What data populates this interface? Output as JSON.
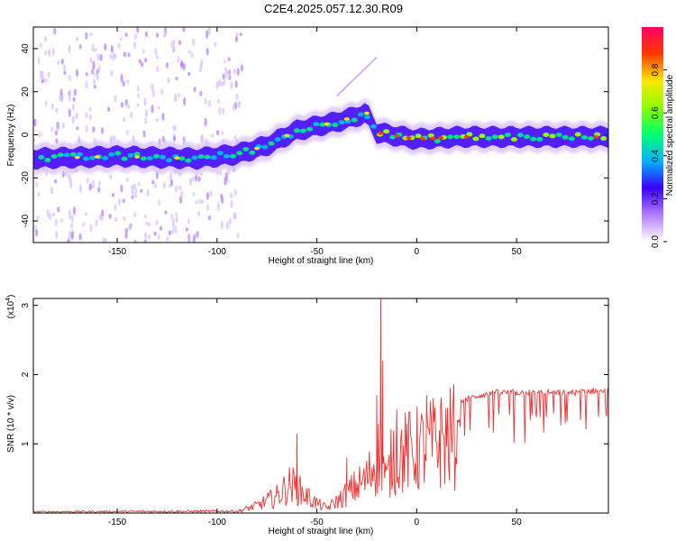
{
  "title": "C2E4.2025.057.12.30.R09",
  "chart_data": [
    {
      "type": "heatmap",
      "xlabel": "Height of straight line (km)",
      "ylabel": "Frequency (Hz)",
      "xlim": [
        -192,
        96
      ],
      "ylim": [
        -50,
        50
      ],
      "x_ticks": [
        -150,
        -100,
        -50,
        0,
        50
      ],
      "x_tick_labels": [
        "-150",
        "-100",
        "-50",
        "0",
        "50"
      ],
      "y_ticks": [
        -40,
        -20,
        0,
        20,
        40
      ],
      "y_tick_labels": [
        "-40",
        "-20",
        "0",
        "20",
        "40"
      ],
      "colorbar": {
        "label": "Normalized spectral amplitude",
        "range": [
          0,
          1
        ],
        "ticks": [
          0.0,
          0.2,
          0.4,
          0.6,
          0.8
        ],
        "tick_labels": [
          "0.0",
          "0.2",
          "0.4",
          "0.6",
          "0.8"
        ],
        "colors": [
          "#ffffff",
          "#b27cff",
          "#3a00ff",
          "#00b4ff",
          "#00ff6e",
          "#8cff00",
          "#ffe600",
          "#ff3a00",
          "#ff0064"
        ]
      },
      "ridge": [
        {
          "x": -192,
          "y": -11
        },
        {
          "x": -150,
          "y": -10
        },
        {
          "x": -110,
          "y": -11
        },
        {
          "x": -90,
          "y": -9
        },
        {
          "x": -75,
          "y": -5
        },
        {
          "x": -60,
          "y": 2
        },
        {
          "x": -40,
          "y": 6
        },
        {
          "x": -25,
          "y": 10
        },
        {
          "x": -20,
          "y": 1
        },
        {
          "x": 0,
          "y": -2
        },
        {
          "x": 20,
          "y": -1
        },
        {
          "x": 96,
          "y": -1
        }
      ]
    },
    {
      "type": "line",
      "xlabel": "Height of straight line (km)",
      "ylabel": "SNR (10 * v/v)",
      "y_multiplier": "(x10",
      "y_multiplier_exp": "4",
      "y_multiplier_close": ")",
      "xlim": [
        -192,
        96
      ],
      "ylim": [
        0,
        3.1
      ],
      "x_ticks": [
        -150,
        -100,
        -50,
        0,
        50
      ],
      "x_tick_labels": [
        "-150",
        "-100",
        "-50",
        "0",
        "50"
      ],
      "y_ticks": [
        1,
        2,
        3
      ],
      "y_tick_labels": [
        "1",
        "2",
        "3"
      ],
      "series": [
        {
          "color": "#ee3333",
          "envelope": [
            {
              "x": -192,
              "y": 0.02
            },
            {
              "x": -90,
              "y": 0.03
            },
            {
              "x": -80,
              "y": 0.15
            },
            {
              "x": -70,
              "y": 0.35
            },
            {
              "x": -63,
              "y": 0.6
            },
            {
              "x": -55,
              "y": 0.35
            },
            {
              "x": -50,
              "y": 0.2
            },
            {
              "x": -45,
              "y": 0.1
            },
            {
              "x": -38,
              "y": 0.3
            },
            {
              "x": -32,
              "y": 0.5
            },
            {
              "x": -25,
              "y": 0.7
            },
            {
              "x": -20,
              "y": 1.1
            },
            {
              "x": -18,
              "y": 1.3
            },
            {
              "x": -15,
              "y": 0.6
            },
            {
              "x": -12,
              "y": 1.2
            },
            {
              "x": -5,
              "y": 1.25
            },
            {
              "x": 0,
              "y": 1.3
            },
            {
              "x": 10,
              "y": 1.45
            },
            {
              "x": 20,
              "y": 1.6
            },
            {
              "x": 30,
              "y": 1.7
            },
            {
              "x": 40,
              "y": 1.75
            },
            {
              "x": 60,
              "y": 1.75
            },
            {
              "x": 80,
              "y": 1.75
            },
            {
              "x": 96,
              "y": 1.8
            }
          ],
          "spikes": [
            {
              "x": -60,
              "y": 1.15
            },
            {
              "x": -35,
              "y": 0.8
            },
            {
              "x": -20,
              "y": 1.7
            },
            {
              "x": -18,
              "y": 3.1
            },
            {
              "x": -17,
              "y": 2.2
            },
            {
              "x": -10,
              "y": 1.5
            },
            {
              "x": 5,
              "y": 1.7
            },
            {
              "x": 12,
              "y": 1.55
            }
          ]
        }
      ]
    }
  ]
}
